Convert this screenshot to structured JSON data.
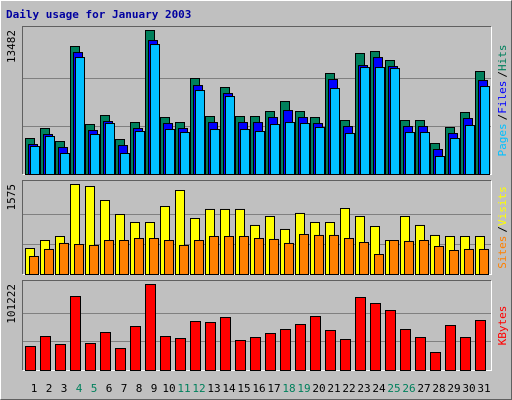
{
  "title": "Daily usage for January 2003",
  "chart_data": [
    {
      "type": "bar",
      "legend_separator": "/",
      "series": [
        {
          "name": "Hits",
          "color": "#00805c",
          "values": [
            3370,
            4306,
            3089,
            11984,
            4681,
            5523,
            3276,
            4868,
            13482,
            5336,
            4868,
            8988,
            5430,
            8145,
            5430,
            5430,
            5898,
            6834,
            5898,
            5336,
            9456,
            5055,
            11328,
            11516,
            10673,
            5055,
            5055,
            2902,
            4400,
            5805,
            9643
          ]
        },
        {
          "name": "Files",
          "color": "#0000ff",
          "values": [
            2808,
            3744,
            2527,
            11419,
            4118,
            4961,
            2714,
            4306,
            12542,
            4774,
            4306,
            8330,
            4867,
            7582,
            4867,
            4867,
            5335,
            5990,
            5335,
            4774,
            8892,
            4493,
            10202,
            10951,
            10109,
            4493,
            4493,
            2340,
            3838,
            5242,
            8798
          ]
        },
        {
          "name": "Pages",
          "color": "#00c0ff",
          "values": [
            2621,
            3557,
            1966,
            10951,
            3744,
            4774,
            1966,
            4025,
            12168,
            4212,
            3931,
            7862,
            4212,
            7301,
            4212,
            4025,
            4680,
            4867,
            4774,
            4399,
            8050,
            3838,
            10015,
            10015,
            9922,
            3931,
            3931,
            1685,
            3370,
            4586,
            8237
          ]
        }
      ],
      "ylim": [
        0,
        13482
      ],
      "yticks": [
        13482
      ],
      "grid": [
        4494,
        8988
      ]
    },
    {
      "type": "bar",
      "legend_separator": "/",
      "series": [
        {
          "name": "Visits",
          "color": "#ffff00",
          "values": [
            455,
            595,
            665,
            1575,
            1540,
            1295,
            1050,
            910,
            910,
            1190,
            1470,
            980,
            1138,
            1138,
            1138,
            858,
            1015,
            788,
            1068,
            910,
            910,
            1155,
            1015,
            840,
            595,
            1015,
            858,
            683,
            665,
            665,
            665
          ]
        },
        {
          "name": "Sites",
          "color": "#ff8000",
          "values": [
            315,
            438,
            543,
            525,
            508,
            595,
            595,
            630,
            630,
            595,
            508,
            595,
            665,
            665,
            665,
            630,
            613,
            543,
            700,
            683,
            683,
            630,
            560,
            350,
            595,
            578,
            595,
            490,
            420,
            438,
            438
          ]
        }
      ],
      "ylim": [
        0,
        1575
      ],
      "yticks": [
        1575
      ],
      "grid": [
        525,
        1050
      ]
    },
    {
      "type": "bar",
      "categories": [
        "1",
        "2",
        "3",
        "4",
        "5",
        "6",
        "7",
        "8",
        "9",
        "10",
        "11",
        "12",
        "13",
        "14",
        "15",
        "16",
        "17",
        "18",
        "19",
        "20",
        "21",
        "22",
        "23",
        "24",
        "25",
        "26",
        "27",
        "28",
        "29",
        "30",
        "31"
      ],
      "category_colors": [
        "#000000",
        "#000000",
        "#000000",
        "#00805c",
        "#00805c",
        "#000000",
        "#000000",
        "#000000",
        "#000000",
        "#000000",
        "#00805c",
        "#00805c",
        "#000000",
        "#000000",
        "#000000",
        "#000000",
        "#000000",
        "#00805c",
        "#00805c",
        "#000000",
        "#000000",
        "#000000",
        "#000000",
        "#000000",
        "#00805c",
        "#00805c",
        "#000000",
        "#000000",
        "#000000",
        "#000000",
        "#000000"
      ],
      "series": [
        {
          "name": "KBytes",
          "color": "#ff0000",
          "values": [
            28248,
            40018,
            30602,
            87098,
            31779,
            44726,
            25894,
            51788,
            101222,
            40018,
            37664,
            57673,
            56496,
            62381,
            35310,
            38841,
            43549,
            48257,
            54142,
            63558,
            47080,
            36487,
            85921,
            78859,
            70620,
            48257,
            38841,
            21186,
            52965,
            38841,
            58850
          ]
        }
      ],
      "ylim": [
        0,
        101222
      ],
      "yticks": [
        101222
      ],
      "grid": [
        33741,
        67481
      ]
    }
  ]
}
